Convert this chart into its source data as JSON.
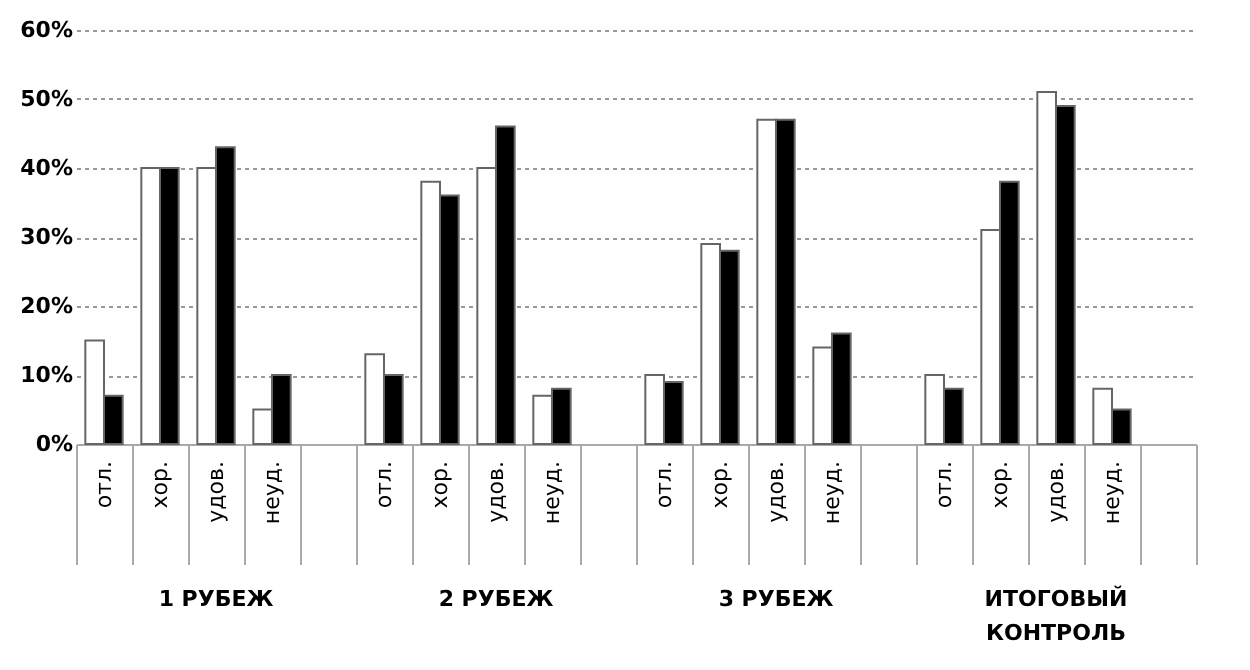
{
  "chart_data": {
    "type": "bar",
    "categories": [
      "отл.",
      "хор.",
      "удов.",
      "неуд.",
      null,
      "отл.",
      "хор.",
      "удов.",
      "неуд.",
      null,
      "отл.",
      "хор.",
      "удов.",
      "неуд.",
      null,
      "отл.",
      "хор.",
      "удов.",
      "неуд.",
      null
    ],
    "series": [
      {
        "color": "#ffffff",
        "values": [
          15,
          40,
          40,
          5,
          null,
          13,
          38,
          40,
          7,
          null,
          10,
          29,
          47,
          14,
          null,
          10,
          31,
          51,
          8,
          null
        ]
      },
      {
        "color": "#000000",
        "values": [
          7,
          40,
          43,
          10,
          null,
          10,
          36,
          46,
          8,
          null,
          9,
          28,
          47,
          16,
          null,
          8,
          38,
          49,
          5,
          null
        ]
      }
    ],
    "ylim": [
      0,
      60
    ],
    "yticks": [
      {
        "value": 0,
        "label": "0%"
      },
      {
        "value": 10,
        "label": "10%"
      },
      {
        "value": 20,
        "label": "20%"
      },
      {
        "value": 30,
        "label": "30%"
      },
      {
        "value": 40,
        "label": "40%"
      },
      {
        "value": 50,
        "label": "50%"
      },
      {
        "value": 60,
        "label": "60%"
      }
    ],
    "grid": "y",
    "annotations": [
      "1 РУБЕЖ",
      "2 РУБЕЖ",
      "3 РУБЕЖ",
      "ИТОГОВЫЙ\nКОНТРОЛЬ"
    ]
  }
}
